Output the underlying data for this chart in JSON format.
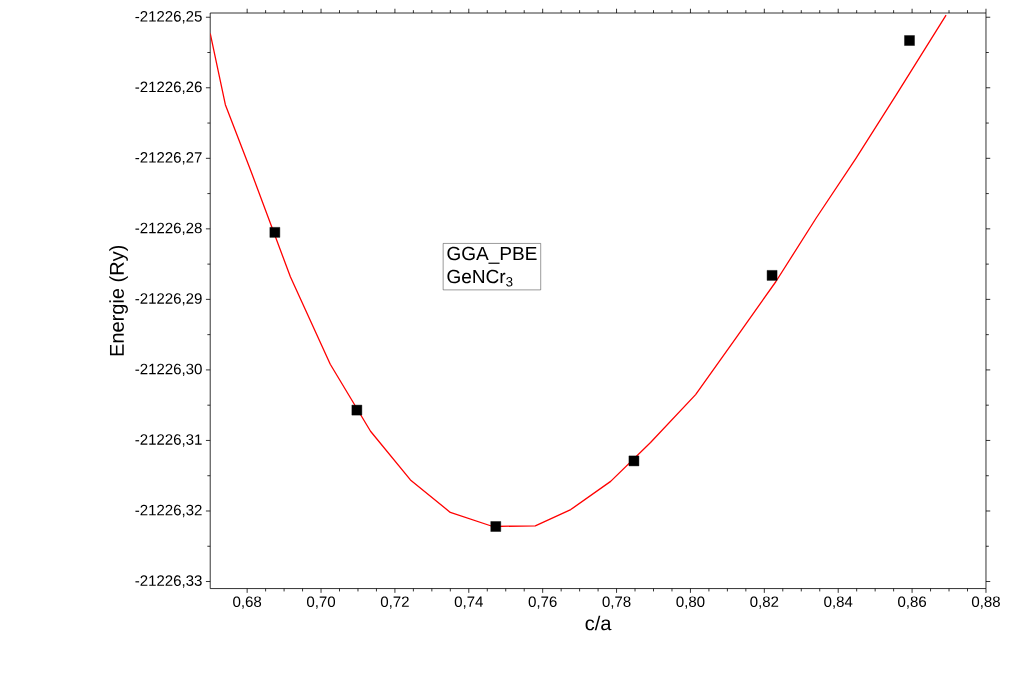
{
  "chart_data": {
    "type": "scatter",
    "xlabel": "c/a",
    "ylabel": "Energie (Ry)",
    "annotations": [
      "GGA_PBE",
      "GeNCr$_{3}$"
    ],
    "series": [
      {
        "color": "#000000",
        "marker": "square",
        "x": [
          0.6875,
          0.7097,
          0.7473,
          0.7847,
          0.8221,
          0.8593
        ],
        "values": [
          -21226.2805,
          -21226.3057,
          -21226.3222,
          -21226.3129,
          -21226.2866,
          -21226.2533
        ]
      },
      {
        "type": "line",
        "color": "#ff0000",
        "marker": "none",
        "line_style": "solid",
        "x": [
          0.67,
          0.6741,
          0.6808,
          0.6917,
          0.7025,
          0.7134,
          0.7242,
          0.735,
          0.7465,
          0.758,
          0.7676,
          0.7784,
          0.7892,
          0.8014,
          0.8123,
          0.8231,
          0.834,
          0.8448,
          0.8557,
          0.8692
        ],
        "values": [
          -21226.2523,
          -21226.2624,
          -21226.2715,
          -21226.2868,
          -21226.2992,
          -21226.3087,
          -21226.3156,
          -21226.3202,
          -21226.3222,
          -21226.3221,
          -21226.3198,
          -21226.3158,
          -21226.3103,
          -21226.3035,
          -21226.2955,
          -21226.2875,
          -21226.2785,
          -21226.27,
          -21226.261,
          -21226.2497
        ]
      }
    ],
    "xlim": [
      0.67,
      0.88
    ],
    "ylim": [
      -21226.331,
      -21226.2494
    ],
    "xticks": [
      {
        "value": 0.68,
        "label": "0,68"
      },
      {
        "value": 0.7,
        "label": "0,70"
      },
      {
        "value": 0.72,
        "label": "0,72"
      },
      {
        "value": 0.74,
        "label": "0,74"
      },
      {
        "value": 0.76,
        "label": "0,76"
      },
      {
        "value": 0.78,
        "label": "0,78"
      },
      {
        "value": 0.8,
        "label": "0,80"
      },
      {
        "value": 0.82,
        "label": "0,82"
      },
      {
        "value": 0.84,
        "label": "0,84"
      },
      {
        "value": 0.86,
        "label": "0,86"
      },
      {
        "value": 0.88,
        "label": "0,88"
      }
    ],
    "yticks": [
      {
        "value": -21226.33,
        "label": "-21226,33"
      },
      {
        "value": -21226.32,
        "label": "-21226,32"
      },
      {
        "value": -21226.31,
        "label": "-21226,31"
      },
      {
        "value": -21226.3,
        "label": "-21226,30"
      },
      {
        "value": -21226.29,
        "label": "-21226,29"
      },
      {
        "value": -21226.28,
        "label": "-21226,28"
      },
      {
        "value": -21226.27,
        "label": "-21226,27"
      },
      {
        "value": -21226.26,
        "label": "-21226,26"
      },
      {
        "value": -21226.25,
        "label": "-21226,25"
      }
    ],
    "grid": false
  }
}
